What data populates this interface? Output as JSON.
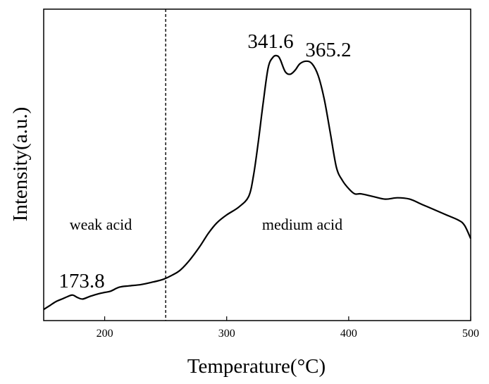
{
  "chart_data": {
    "type": "line",
    "xlabel": "Temperature(°C)",
    "ylabel": "Intensity(a.u.)",
    "xlim": [
      150,
      500
    ],
    "ylim": [
      0,
      1
    ],
    "x_ticks": [
      200,
      300,
      400,
      500
    ],
    "y_ticks_labeled": false,
    "grid": false,
    "legend": "none",
    "divider_x": 250,
    "regions": [
      {
        "label": "weak acid",
        "x_center": 200
      },
      {
        "label": "medium acid",
        "x_center": 354
      }
    ],
    "peak_labels": [
      {
        "label": "173.8",
        "x": 173.8,
        "y": 0.065
      },
      {
        "label": "341.6",
        "x": 341.6,
        "y": 0.975
      },
      {
        "label": "365.2",
        "x": 365.2,
        "y": 0.955
      }
    ],
    "series": [
      {
        "x": [
          150,
          155,
          160,
          165,
          170,
          173.8,
          178,
          182,
          188,
          195,
          200,
          205,
          212,
          220,
          230,
          240,
          248,
          255,
          262,
          270,
          278,
          285,
          292,
          300,
          310,
          318,
          322,
          326,
          330,
          334,
          338,
          341.6,
          344,
          348,
          352,
          356,
          360,
          365.2,
          370,
          375,
          380,
          385,
          390,
          395,
          400,
          405,
          410,
          420,
          430,
          440,
          450,
          460,
          470,
          480,
          490,
          495,
          500
        ],
        "y": [
          0.01,
          0.025,
          0.04,
          0.05,
          0.06,
          0.065,
          0.055,
          0.05,
          0.06,
          0.07,
          0.075,
          0.08,
          0.095,
          0.1,
          0.105,
          0.115,
          0.125,
          0.14,
          0.16,
          0.2,
          0.25,
          0.3,
          0.34,
          0.37,
          0.4,
          0.44,
          0.52,
          0.65,
          0.8,
          0.93,
          0.97,
          0.975,
          0.96,
          0.915,
          0.905,
          0.92,
          0.945,
          0.955,
          0.945,
          0.9,
          0.81,
          0.68,
          0.55,
          0.5,
          0.47,
          0.45,
          0.45,
          0.44,
          0.43,
          0.435,
          0.43,
          0.41,
          0.39,
          0.37,
          0.35,
          0.33,
          0.28
        ]
      }
    ]
  }
}
